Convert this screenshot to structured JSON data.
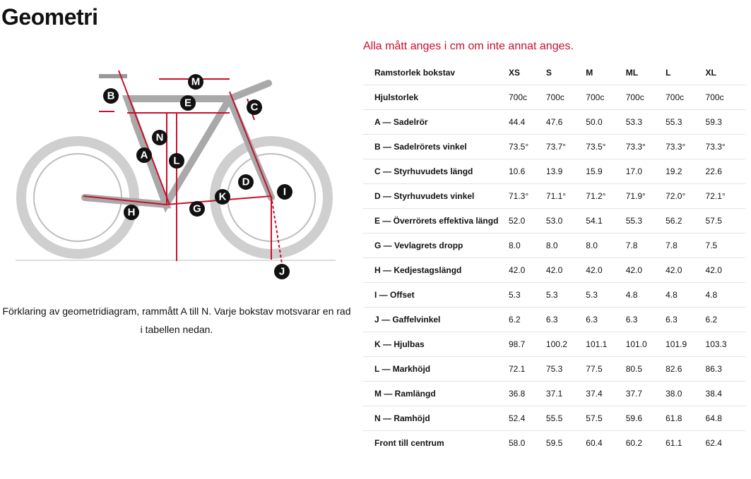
{
  "header": {
    "title": "Geometri"
  },
  "note": "Alla mått anges i cm om inte annat anges.",
  "diagram": {
    "labels": [
      "B",
      "M",
      "E",
      "C",
      "N",
      "A",
      "L",
      "D",
      "I",
      "K",
      "H",
      "G",
      "J"
    ]
  },
  "caption": "Förklaring av geometridiagram, rammått A till N. Varje bokstav motsvarar en rad i tabellen nedan.",
  "table": {
    "columns": [
      "Ramstorlek bokstav",
      "XS",
      "S",
      "M",
      "ML",
      "L",
      "XL"
    ],
    "rows": [
      [
        "Hjulstorlek",
        "700c",
        "700c",
        "700c",
        "700c",
        "700c",
        "700c"
      ],
      [
        "A — Sadelrör",
        "44.4",
        "47.6",
        "50.0",
        "53.3",
        "55.3",
        "59.3"
      ],
      [
        "B — Sadelrörets vinkel",
        "73.5°",
        "73.7°",
        "73.5°",
        "73.3°",
        "73.3°",
        "73.3°"
      ],
      [
        "C — Styrhuvudets längd",
        "10.6",
        "13.9",
        "15.9",
        "17.0",
        "19.2",
        "22.6"
      ],
      [
        "D — Styrhuvudets vinkel",
        "71.3°",
        "71.1°",
        "71.2°",
        "71.9°",
        "72.0°",
        "72.1°"
      ],
      [
        "E — Överrörets effektiva längd",
        "52.0",
        "53.0",
        "54.1",
        "55.3",
        "56.2",
        "57.5"
      ],
      [
        "G — Vevlagrets dropp",
        "8.0",
        "8.0",
        "8.0",
        "7.8",
        "7.8",
        "7.5"
      ],
      [
        "H — Kedjestagslängd",
        "42.0",
        "42.0",
        "42.0",
        "42.0",
        "42.0",
        "42.0"
      ],
      [
        "I — Offset",
        "5.3",
        "5.3",
        "5.3",
        "4.8",
        "4.8",
        "4.8"
      ],
      [
        "J — Gaffelvinkel",
        "6.2",
        "6.3",
        "6.3",
        "6.3",
        "6.3",
        "6.2"
      ],
      [
        "K — Hjulbas",
        "98.7",
        "100.2",
        "101.1",
        "101.0",
        "101.9",
        "103.3"
      ],
      [
        "L — Markhöjd",
        "72.1",
        "75.3",
        "77.5",
        "80.5",
        "82.6",
        "86.3"
      ],
      [
        "M — Ramlängd",
        "36.8",
        "37.1",
        "37.4",
        "37.7",
        "38.0",
        "38.4"
      ],
      [
        "N — Ramhöjd",
        "52.4",
        "55.5",
        "57.5",
        "59.6",
        "61.8",
        "64.8"
      ],
      [
        "Front till centrum",
        "58.0",
        "59.5",
        "60.4",
        "60.2",
        "61.1",
        "62.4"
      ]
    ]
  }
}
